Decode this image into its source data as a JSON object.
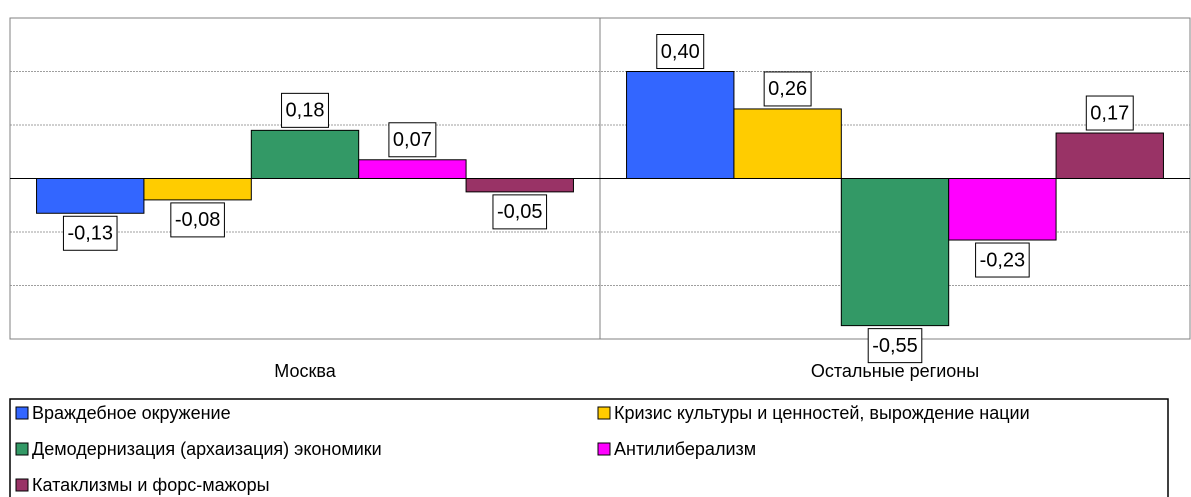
{
  "chart_data": {
    "type": "bar",
    "categories": [
      "Москва",
      "Остальные регионы"
    ],
    "series": [
      {
        "name": "Враждебное окружение",
        "color": "#3366ff",
        "values": [
          -0.13,
          0.4
        ],
        "value_labels": [
          "-0,13",
          "0,40"
        ]
      },
      {
        "name": "Кризис культуры и ценностей, вырождение нации",
        "color": "#ffcc00",
        "values": [
          -0.08,
          0.26
        ],
        "value_labels": [
          "-0,08",
          "0,26"
        ]
      },
      {
        "name": "Демодернизация (архаизация) экономики",
        "color": "#339966",
        "values": [
          0.18,
          -0.55
        ],
        "value_labels": [
          "0,18",
          "-0,55"
        ]
      },
      {
        "name": "Антилиберализм",
        "color": "#ff00ff",
        "values": [
          0.07,
          -0.23
        ],
        "value_labels": [
          "0,07",
          "-0,23"
        ]
      },
      {
        "name": "Катаклизмы и форс-мажоры",
        "color": "#993366",
        "values": [
          -0.05,
          0.17
        ],
        "value_labels": [
          "-0,05",
          "0,17"
        ]
      }
    ],
    "ylim": [
      -0.6,
      0.6
    ],
    "yticks": [
      -0.6,
      -0.4,
      -0.2,
      0,
      0.2,
      0.4,
      0.6
    ],
    "grid": true
  }
}
